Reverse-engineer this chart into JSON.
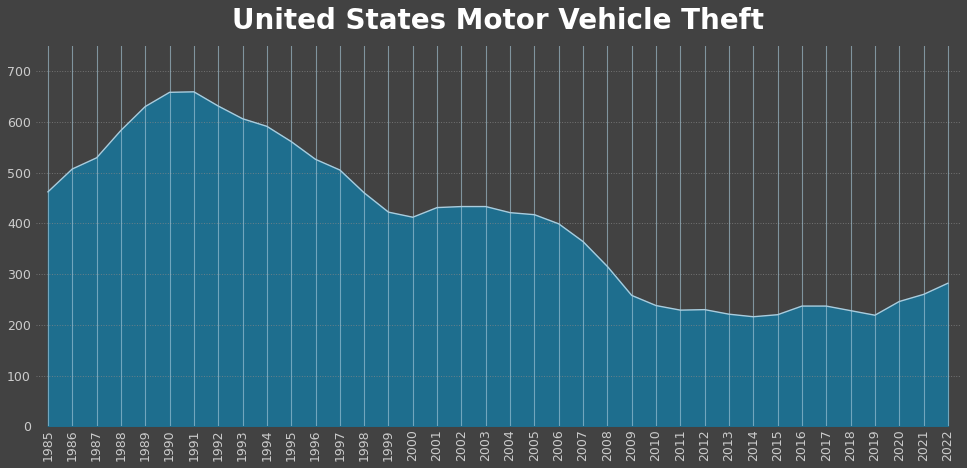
{
  "title": "United States Motor Vehicle Theft",
  "years": [
    1985,
    1986,
    1987,
    1988,
    1989,
    1990,
    1991,
    1992,
    1993,
    1994,
    1995,
    1996,
    1997,
    1998,
    1999,
    2000,
    2001,
    2002,
    2003,
    2004,
    2005,
    2006,
    2007,
    2008,
    2009,
    2010,
    2011,
    2012,
    2013,
    2014,
    2015,
    2016,
    2017,
    2018,
    2019,
    2020,
    2021,
    2022
  ],
  "values": [
    462,
    507,
    529,
    583,
    630,
    658,
    659,
    631,
    606,
    591,
    561,
    526,
    505,
    460,
    422,
    412,
    431,
    433,
    433,
    421,
    417,
    399,
    364,
    315,
    258,
    238,
    229,
    230,
    221,
    216,
    220,
    237,
    237,
    228,
    219,
    246,
    260,
    282
  ],
  "bg_color": "#424242",
  "fill_color": "#1e6e8e",
  "line_color": "#aaccdd",
  "vline_color": "#aaccdd",
  "grid_color": "#888888",
  "text_color": "#cccccc",
  "yticks": [
    0,
    100,
    200,
    300,
    400,
    500,
    600,
    700
  ],
  "ylim": [
    0,
    750
  ],
  "title_fontsize": 20,
  "tick_fontsize": 9,
  "figsize": [
    9.67,
    4.68
  ],
  "dpi": 100
}
